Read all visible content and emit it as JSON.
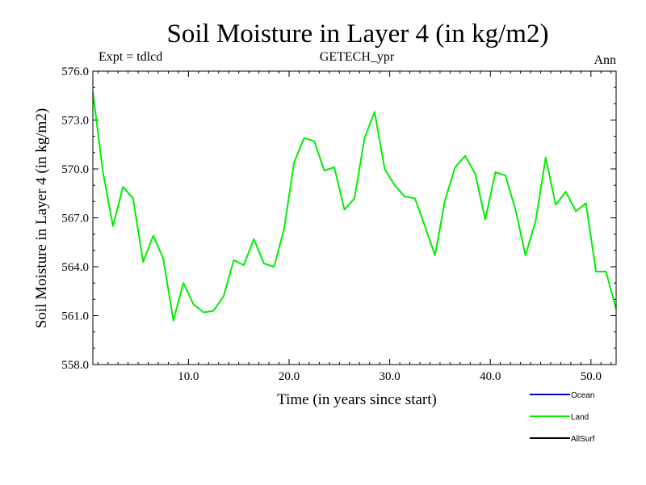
{
  "chart_data": {
    "type": "line",
    "title": "Soil Moisture in Layer 4 (in kg/m2)",
    "subtitle_left": "Expt = tdlcd",
    "subtitle_center": "GETECH_ypr",
    "subtitle_right": "Ann",
    "xlabel": "Time (in years since start)",
    "ylabel": "Soil Moisture in Layer 4 (in kg/m2)",
    "xlim": [
      0.5,
      52.5
    ],
    "ylim": [
      558.0,
      576.0
    ],
    "x_ticks": [
      10,
      20,
      30,
      40,
      50
    ],
    "x_tick_labels": [
      "10.0",
      "20.0",
      "30.0",
      "40.0",
      "50.0"
    ],
    "y_ticks": [
      558,
      561,
      564,
      567,
      570,
      573,
      576
    ],
    "y_tick_labels": [
      "558.0",
      "561.0",
      "564.0",
      "567.0",
      "570.0",
      "573.0",
      "576.0"
    ],
    "grid": false,
    "legend": {
      "placement": "bottom-right",
      "entries": [
        {
          "name": "Ocean",
          "color": "#0000cc"
        },
        {
          "name": "Land",
          "color": "#00ee00"
        },
        {
          "name": "AllSurf",
          "color": "#000000"
        }
      ]
    },
    "series": [
      {
        "name": "Land",
        "color": "#00ee00",
        "x": [
          0.5,
          1.5,
          2.5,
          3.5,
          4.5,
          5.5,
          6.5,
          7.5,
          8.5,
          9.5,
          10.5,
          11.5,
          12.5,
          13.5,
          14.5,
          15.5,
          16.5,
          17.5,
          18.5,
          19.5,
          20.5,
          21.5,
          22.5,
          23.5,
          24.5,
          25.5,
          26.5,
          27.5,
          28.5,
          29.5,
          30.5,
          31.5,
          32.5,
          33.5,
          34.5,
          35.5,
          36.5,
          37.5,
          38.5,
          39.5,
          40.5,
          41.5,
          42.5,
          43.5,
          44.5,
          45.5,
          46.5,
          47.5,
          48.5,
          49.5,
          50.5,
          51.5,
          52.5
        ],
        "values": [
          574.7,
          569.8,
          566.5,
          568.9,
          568.2,
          564.3,
          565.9,
          564.5,
          560.7,
          563.0,
          561.7,
          561.2,
          561.3,
          562.2,
          564.4,
          564.1,
          565.7,
          564.2,
          564.0,
          566.3,
          570.4,
          571.9,
          571.7,
          569.9,
          570.1,
          567.5,
          568.2,
          571.9,
          573.5,
          570.0,
          569.0,
          568.3,
          568.2,
          566.5,
          564.7,
          568.1,
          570.1,
          570.8,
          569.7,
          566.9,
          569.8,
          569.6,
          567.5,
          564.7,
          566.8,
          570.7,
          567.8,
          568.6,
          567.4,
          567.9,
          563.7,
          563.7,
          561.4
        ]
      }
    ]
  }
}
